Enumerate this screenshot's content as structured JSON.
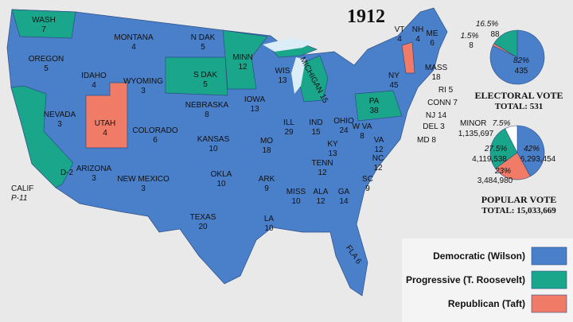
{
  "title": "1912",
  "states": [
    {
      "name": "WASH",
      "votes": 7
    },
    {
      "name": "OREGON",
      "votes": 5
    },
    {
      "name": "CALIF",
      "votes": "P-11"
    },
    {
      "name": "NEVADA",
      "votes": 3
    },
    {
      "name": "IDAHO",
      "votes": 4
    },
    {
      "name": "MONTANA",
      "votes": 4
    },
    {
      "name": "WYOMING",
      "votes": 3
    },
    {
      "name": "UTAH",
      "votes": 4
    },
    {
      "name": "COLORADO",
      "votes": 6
    },
    {
      "name": "ARIZONA",
      "votes": 3
    },
    {
      "name": "NEW MEXICO",
      "votes": 3
    },
    {
      "name": "N DAK",
      "votes": 5
    },
    {
      "name": "S DAK",
      "votes": 5
    },
    {
      "name": "NEBRASKA",
      "votes": 8
    },
    {
      "name": "KANSAS",
      "votes": 10
    },
    {
      "name": "OKLA",
      "votes": 10
    },
    {
      "name": "TEXAS",
      "votes": 20
    },
    {
      "name": "MINN",
      "votes": 12
    },
    {
      "name": "IOWA",
      "votes": 13
    },
    {
      "name": "MO",
      "votes": 18
    },
    {
      "name": "ARK",
      "votes": 9
    },
    {
      "name": "LA",
      "votes": 10
    },
    {
      "name": "WIS",
      "votes": 13
    },
    {
      "name": "ILL",
      "votes": 29
    },
    {
      "name": "IND",
      "votes": 15
    },
    {
      "name": "OHIO",
      "votes": 24
    },
    {
      "name": "KY",
      "votes": 13
    },
    {
      "name": "TENN",
      "votes": 12
    },
    {
      "name": "MISS",
      "votes": 10
    },
    {
      "name": "ALA",
      "votes": 12
    },
    {
      "name": "GA",
      "votes": 14
    },
    {
      "name": "SC",
      "votes": 9
    },
    {
      "name": "NC",
      "votes": 12
    },
    {
      "name": "VA",
      "votes": 12
    },
    {
      "name": "W VA",
      "votes": 8
    },
    {
      "name": "PA",
      "votes": 38
    },
    {
      "name": "NY",
      "votes": 45
    },
    {
      "name": "ME",
      "votes": 6
    },
    {
      "name": "VT",
      "votes": 4
    },
    {
      "name": "NH",
      "votes": 4
    },
    {
      "name": "MASS",
      "votes": 18
    },
    {
      "name": "RI",
      "votes": 5
    },
    {
      "name": "CONN",
      "votes": 7
    },
    {
      "name": "NJ",
      "votes": 14
    },
    {
      "name": "DEL",
      "votes": 3
    },
    {
      "name": "MD",
      "votes": 8
    },
    {
      "name": "MICHIGAN",
      "votes": 15
    },
    {
      "name": "FLA",
      "votes": 6
    }
  ],
  "split_label": "D-2",
  "electoral": {
    "title": "ELECTORAL VOTE",
    "total": "TOTAL:  531",
    "segments": [
      {
        "color": "#4a7fc9",
        "percent": {
          "value": 82,
          "label": "82%"
        },
        "votes": 435
      },
      {
        "color": "#f07b66",
        "percent": {
          "value": 1.5,
          "label": "1.5%"
        },
        "votes": 8
      },
      {
        "color": "#1aa68b",
        "percent": {
          "value": 16.5,
          "label": "16.5%"
        },
        "votes": 88
      }
    ]
  },
  "popular": {
    "title": "POPULAR VOTE",
    "total": "TOTAL:  15,033,669",
    "minor_label": "MINOR",
    "segments": [
      {
        "color": "#4a7fc9",
        "percent": {
          "value": 42,
          "label": "42%"
        },
        "votes": {
          "value": 6293454,
          "label": "6,293,454"
        }
      },
      {
        "color": "#f07b66",
        "percent": {
          "value": 23,
          "label": "23%"
        },
        "votes": {
          "value": 3484980,
          "label": "3,484,980"
        }
      },
      {
        "color": "#1aa68b",
        "percent": {
          "value": 27.5,
          "label": "27.5%"
        },
        "votes": {
          "value": 4119538,
          "label": "4,119,538"
        }
      },
      {
        "color": "#ffffff",
        "percent": {
          "value": 7.5,
          "label": "7.5%"
        },
        "votes": {
          "value": 1135697,
          "label": "1,135,697"
        }
      }
    ]
  },
  "legend": [
    {
      "label": "Democratic (Wilson)",
      "color": "#4a7fc9"
    },
    {
      "label": "Progressive (T. Roosevelt)",
      "color": "#1aa68b"
    },
    {
      "label": "Republican (Taft)",
      "color": "#f07b66"
    }
  ]
}
